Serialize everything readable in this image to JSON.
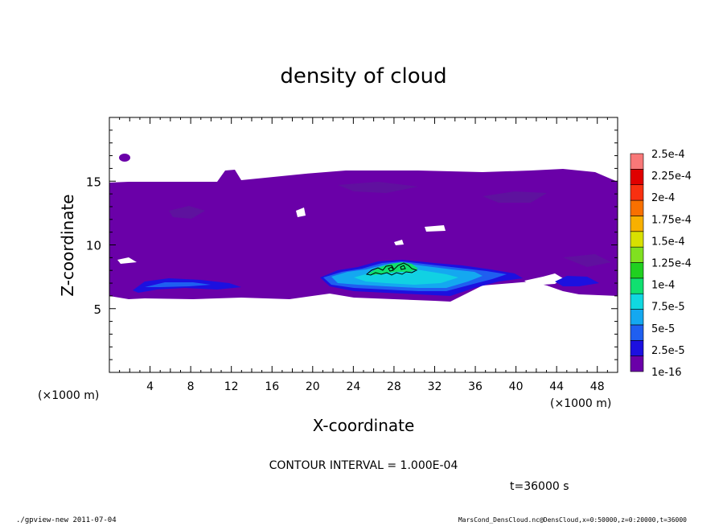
{
  "chart_data": {
    "type": "heatmap",
    "title": "density of cloud",
    "xlabel": "X-coordinate",
    "ylabel": "Z-coordinate",
    "x_unit_left": "(×1000 m)",
    "x_unit_right": "(×1000 m)",
    "xlim": [
      0,
      50
    ],
    "ylim": [
      0,
      20
    ],
    "x_ticks": [
      4,
      8,
      12,
      16,
      20,
      24,
      28,
      32,
      36,
      40,
      44,
      48
    ],
    "y_ticks": [
      5,
      10,
      15
    ],
    "contour_interval_label": "CONTOUR INTERVAL = 1.000E-04",
    "time_label": "t=36000 s",
    "colorbar": {
      "labels": [
        "1e-16",
        "2.5e-5",
        "5e-5",
        "7.5e-5",
        "1e-4",
        "1.25e-4",
        "1.5e-4",
        "1.75e-4",
        "2e-4",
        "2.25e-4",
        "2.5e-4"
      ],
      "colors": [
        "#6a00a8",
        "#1c10e0",
        "#1f5ff0",
        "#14a8f0",
        "#10d8e0",
        "#10e070",
        "#20d020",
        "#80e020",
        "#d8e000",
        "#f8b000",
        "#f87000",
        "#f83010",
        "#e00000",
        "#f87878"
      ]
    },
    "regions": [
      {
        "level": "1e-16",
        "x": [
          0,
          50
        ],
        "z": [
          5.8,
          15.5
        ]
      },
      {
        "level": "2.5e-5",
        "x": [
          2,
          12
        ],
        "z": [
          6.3,
          7.2
        ]
      },
      {
        "level": "5e-5",
        "x": [
          21,
          40
        ],
        "z": [
          6.2,
          8.3
        ]
      },
      {
        "level": "7.5e-5",
        "x": [
          22,
          36
        ],
        "z": [
          6.5,
          8.3
        ]
      },
      {
        "level": "1e-4",
        "x": [
          25,
          30
        ],
        "z": [
          7.6,
          8.4
        ]
      }
    ]
  },
  "footer": {
    "left": "./gpview-new   2011-07-04",
    "right": "MarsCond_DensCloud.nc@DensCloud,x=0:50000,z=0:20000,t=36000"
  }
}
